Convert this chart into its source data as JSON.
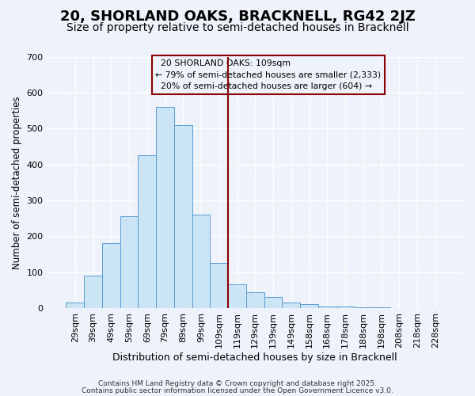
{
  "title1": "20, SHORLAND OAKS, BRACKNELL, RG42 2JZ",
  "title2": "Size of property relative to semi-detached houses in Bracknell",
  "xlabel": "Distribution of semi-detached houses by size in Bracknell",
  "ylabel": "Number of semi-detached properties",
  "categories": [
    "29sqm",
    "39sqm",
    "49sqm",
    "59sqm",
    "69sqm",
    "79sqm",
    "89sqm",
    "99sqm",
    "109sqm",
    "119sqm",
    "129sqm",
    "139sqm",
    "149sqm",
    "158sqm",
    "168sqm",
    "178sqm",
    "188sqm",
    "198sqm",
    "208sqm",
    "218sqm",
    "228sqm"
  ],
  "values": [
    15,
    90,
    180,
    255,
    425,
    560,
    510,
    260,
    125,
    65,
    45,
    30,
    15,
    10,
    5,
    5,
    3,
    2,
    1,
    1,
    0
  ],
  "bar_color": "#cce5f5",
  "bar_edge_color": "#5b9bd5",
  "vline_index": 8,
  "vline_color": "#8b0000",
  "legend_title": "20 SHORLAND OAKS: 109sqm",
  "pct_smaller": 79,
  "n_smaller": 2333,
  "pct_larger": 20,
  "n_larger": 604,
  "footer1": "Contains HM Land Registry data © Crown copyright and database right 2025.",
  "footer2": "Contains public sector information licensed under the Open Government Licence v3.0.",
  "bg_color": "#eef2fa",
  "ylim": [
    0,
    700
  ],
  "yticks": [
    0,
    100,
    200,
    300,
    400,
    500,
    600,
    700
  ],
  "title1_fontsize": 13,
  "title2_fontsize": 10,
  "xlabel_fontsize": 9,
  "ylabel_fontsize": 8.5,
  "tick_fontsize": 8,
  "footer_fontsize": 6.5
}
